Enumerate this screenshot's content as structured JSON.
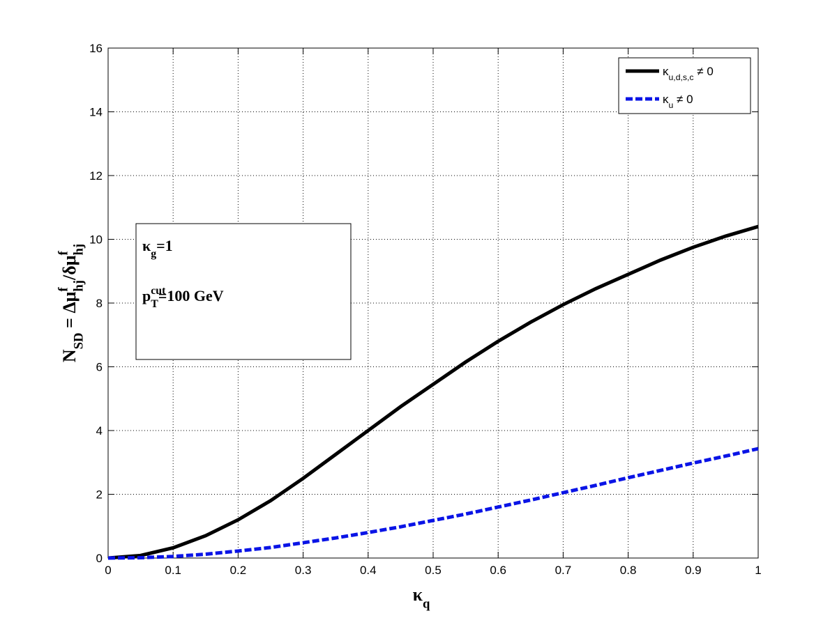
{
  "chart_data": {
    "type": "line",
    "xlabel": [
      {
        "text": "κ"
      },
      {
        "text": "q",
        "shift": "sub"
      }
    ],
    "ylabel": [
      {
        "text": "N"
      },
      {
        "text": "SD",
        "shift": "sub"
      },
      {
        "text": " = Δμ"
      },
      {
        "text": "f",
        "shift": "super"
      },
      {
        "text": "hj",
        "shift": "sub"
      },
      {
        "text": "/δμ"
      },
      {
        "text": "f",
        "shift": "super"
      },
      {
        "text": "hj",
        "shift": "sub"
      }
    ],
    "x": [
      0,
      0.05,
      0.1,
      0.15,
      0.2,
      0.25,
      0.3,
      0.35,
      0.4,
      0.45,
      0.5,
      0.55,
      0.6,
      0.65,
      0.7,
      0.75,
      0.8,
      0.85,
      0.9,
      0.95,
      1
    ],
    "series": [
      {
        "name": [
          {
            "text": "κ"
          },
          {
            "text": "u,d,s,c",
            "shift": "sub"
          },
          {
            "text": " ≠ 0"
          }
        ],
        "color": "#000000",
        "dash": false,
        "values": [
          0,
          0.08,
          0.32,
          0.7,
          1.2,
          1.8,
          2.5,
          3.25,
          4.0,
          4.75,
          5.45,
          6.15,
          6.8,
          7.4,
          7.95,
          8.45,
          8.9,
          9.35,
          9.75,
          10.1,
          10.4
        ]
      },
      {
        "name": [
          {
            "text": "κ"
          },
          {
            "text": "u",
            "shift": "sub"
          },
          {
            "text": " ≠ 0"
          }
        ],
        "color": "#0a14e6",
        "dash": true,
        "values": [
          0,
          0.01,
          0.05,
          0.12,
          0.22,
          0.33,
          0.48,
          0.63,
          0.8,
          0.98,
          1.18,
          1.38,
          1.6,
          1.82,
          2.05,
          2.28,
          2.52,
          2.75,
          2.98,
          3.2,
          3.43
        ]
      }
    ],
    "annotations": [
      [
        {
          "text": "κ"
        },
        {
          "text": "g",
          "shift": "sub"
        },
        {
          "text": "=1"
        }
      ],
      [
        {
          "text": "p"
        },
        {
          "text": "cut",
          "shift": "super"
        },
        {
          "text": "T",
          "shift": "sub"
        },
        {
          "text": "=100 GeV"
        }
      ]
    ],
    "xlim": [
      0,
      1
    ],
    "xticks": [
      0,
      0.1,
      0.2,
      0.3,
      0.4,
      0.5,
      0.6,
      0.7,
      0.8,
      0.9,
      1
    ],
    "ylim": [
      0,
      16
    ],
    "yticks": [
      0,
      2,
      4,
      6,
      8,
      10,
      12,
      14,
      16
    ],
    "grid": true,
    "legend": "upper right"
  }
}
